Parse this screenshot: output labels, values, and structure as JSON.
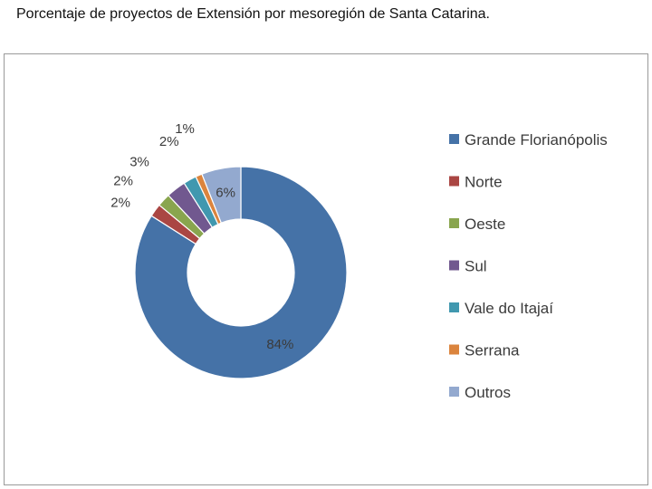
{
  "title": "Porcentaje de proyectos de Extensión por mesoregión  de Santa Catarina.",
  "chart_data": {
    "type": "pie",
    "variant": "doughnut",
    "categories": [
      "Grande Florianópolis",
      "Norte",
      "Oeste",
      "Sul",
      "Vale do Itajaí",
      "Serrana",
      "Outros"
    ],
    "values": [
      84,
      2,
      2,
      3,
      2,
      1,
      6
    ],
    "labels": [
      "84%",
      "2%",
      "2%",
      "3%",
      "2%",
      "1%",
      "6%"
    ],
    "colors": [
      "#4572A7",
      "#AA4643",
      "#89A54E",
      "#71588F",
      "#4198AF",
      "#DB843D",
      "#93A9CF"
    ],
    "legend_position": "right"
  }
}
